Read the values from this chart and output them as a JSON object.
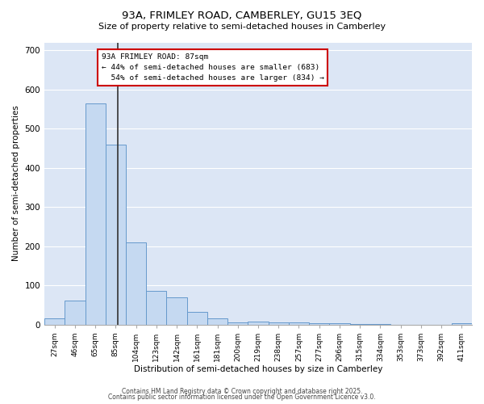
{
  "title1": "93A, FRIMLEY ROAD, CAMBERLEY, GU15 3EQ",
  "title2": "Size of property relative to semi-detached houses in Camberley",
  "xlabel": "Distribution of semi-detached houses by size in Camberley",
  "ylabel": "Number of semi-detached properties",
  "bin_labels": [
    "27sqm",
    "46sqm",
    "65sqm",
    "85sqm",
    "104sqm",
    "123sqm",
    "142sqm",
    "161sqm",
    "181sqm",
    "200sqm",
    "219sqm",
    "238sqm",
    "257sqm",
    "277sqm",
    "296sqm",
    "315sqm",
    "334sqm",
    "353sqm",
    "373sqm",
    "392sqm",
    "411sqm"
  ],
  "bar_heights": [
    15,
    60,
    565,
    460,
    210,
    85,
    70,
    32,
    15,
    6,
    8,
    6,
    5,
    3,
    3,
    2,
    1,
    0,
    0,
    0,
    3
  ],
  "bar_color": "#c5d9f1",
  "bar_edge_color": "#6699cc",
  "property_label": "93A FRIMLEY ROAD: 87sqm",
  "pct_smaller": 44,
  "pct_larger": 54,
  "count_smaller": 683,
  "count_larger": 834,
  "annotation_box_edge": "#cc0000",
  "vline_color": "#333333",
  "ylim": [
    0,
    720
  ],
  "yticks": [
    0,
    100,
    200,
    300,
    400,
    500,
    600,
    700
  ],
  "background_color": "#dce6f5",
  "footer_text1": "Contains HM Land Registry data © Crown copyright and database right 2025.",
  "footer_text2": "Contains public sector information licensed under the Open Government Licence v3.0."
}
